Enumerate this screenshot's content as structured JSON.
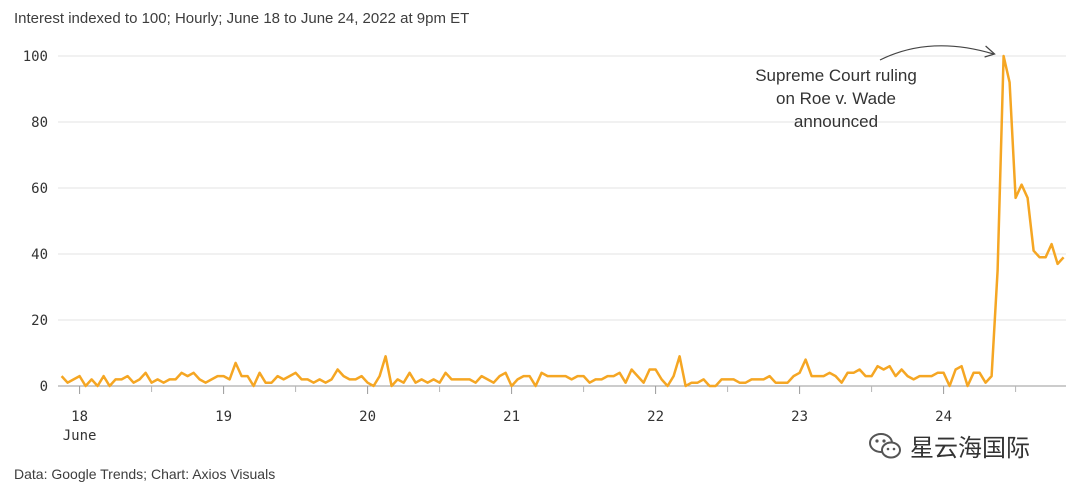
{
  "header": {
    "subtitle": "Interest indexed to 100; Hourly; June 18 to June 24, 2022 at 9pm ET"
  },
  "footer": {
    "source": "Data: Google Trends; Chart: Axios Visuals"
  },
  "watermark": {
    "text": "星云海国际",
    "icon": "wechat-logo"
  },
  "chart_data": {
    "type": "line",
    "title": "",
    "xlabel": "",
    "ylabel": "",
    "line_color": "#F5A623",
    "grid": true,
    "ylim": [
      0,
      100
    ],
    "yticks": [
      0,
      20,
      40,
      60,
      80,
      100
    ],
    "xlim": [
      -0.15,
      6.85
    ],
    "xticks": [
      {
        "value": 0,
        "label": "18",
        "sublabel": "June"
      },
      {
        "value": 1,
        "label": "19"
      },
      {
        "value": 2,
        "label": "20"
      },
      {
        "value": 3,
        "label": "21"
      },
      {
        "value": 4,
        "label": "22"
      },
      {
        "value": 5,
        "label": "23"
      },
      {
        "value": 6,
        "label": "24"
      }
    ],
    "x_unit": "days since June 18, 2022 00:00",
    "x_step_hours": 1,
    "x_start": -0.125,
    "values": [
      3,
      1,
      2,
      3,
      0,
      2,
      0,
      3,
      0,
      2,
      2,
      3,
      1,
      2,
      4,
      1,
      2,
      1,
      2,
      2,
      4,
      3,
      4,
      2,
      1,
      2,
      3,
      3,
      2,
      7,
      3,
      3,
      0,
      4,
      1,
      1,
      3,
      2,
      3,
      4,
      2,
      2,
      1,
      2,
      1,
      2,
      5,
      3,
      2,
      2,
      3,
      1,
      0,
      3,
      9,
      0,
      2,
      1,
      4,
      1,
      2,
      1,
      2,
      1,
      4,
      2,
      2,
      2,
      2,
      1,
      3,
      2,
      1,
      3,
      4,
      0,
      2,
      3,
      3,
      0,
      4,
      3,
      3,
      3,
      3,
      2,
      3,
      3,
      1,
      2,
      2,
      3,
      3,
      4,
      1,
      5,
      3,
      1,
      5,
      5,
      2,
      0,
      3,
      9,
      0,
      1,
      1,
      2,
      0,
      0,
      2,
      2,
      2,
      1,
      1,
      2,
      2,
      2,
      3,
      1,
      1,
      1,
      3,
      4,
      8,
      3,
      3,
      3,
      4,
      3,
      1,
      4,
      4,
      5,
      3,
      3,
      6,
      5,
      6,
      3,
      5,
      3,
      2,
      3,
      3,
      3,
      4,
      4,
      0,
      5,
      6,
      0,
      4,
      4,
      1,
      3,
      35,
      100,
      92,
      57,
      61,
      57,
      41,
      39,
      39,
      43,
      37,
      39
    ],
    "annotations": [
      {
        "text_lines": [
          "Supreme Court ruling",
          "on Roe v. Wade",
          "announced"
        ],
        "x": 6.375,
        "y": 100
      }
    ]
  }
}
